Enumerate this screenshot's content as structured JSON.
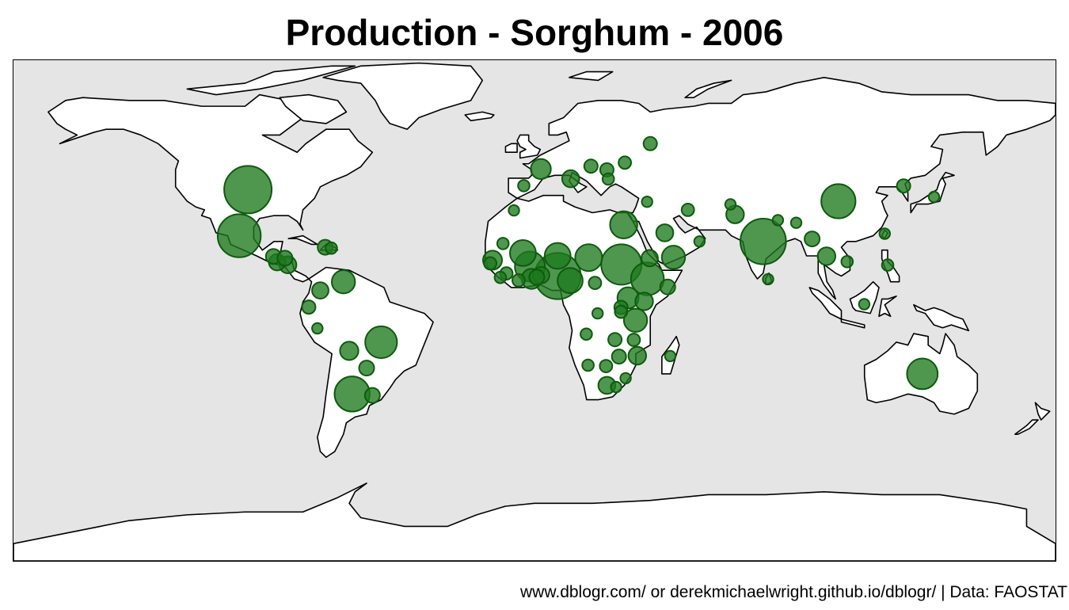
{
  "title": "Production - Sorghum - 2006",
  "caption": "www.dblogr.com/ or derekmichaelwright.github.io/dblogr/ | Data: FAOSTAT",
  "colors": {
    "ocean": "#e5e5e5",
    "land": "#ffffff",
    "bubble": "#1e7a1e"
  },
  "map": {
    "projection": "equirectangular",
    "lon_range": [
      -180,
      180
    ],
    "lat_range": [
      -90,
      84
    ],
    "bubble_metric": "sorghum production (relative)",
    "points": [
      {
        "name": "United States",
        "lon": -99,
        "lat": 39,
        "size": 1.0
      },
      {
        "name": "Mexico",
        "lon": -102,
        "lat": 23,
        "size": 0.82
      },
      {
        "name": "Argentina",
        "lon": -63,
        "lat": -32,
        "size": 0.55
      },
      {
        "name": "Brazil",
        "lon": -53,
        "lat": -14,
        "size": 0.45
      },
      {
        "name": "Nigeria",
        "lon": 8,
        "lat": 9,
        "size": 0.95
      },
      {
        "name": "Sudan",
        "lon": 30,
        "lat": 13,
        "size": 0.72
      },
      {
        "name": "Ethiopia",
        "lon": 39,
        "lat": 8,
        "size": 0.48
      },
      {
        "name": "India",
        "lon": 79,
        "lat": 21,
        "size": 0.92
      },
      {
        "name": "China",
        "lon": 105,
        "lat": 35,
        "size": 0.52
      },
      {
        "name": "Australia",
        "lon": 134,
        "lat": -25,
        "size": 0.42
      },
      {
        "name": "Burkina Faso",
        "lon": -1.6,
        "lat": 12.3,
        "size": 0.4
      },
      {
        "name": "Niger",
        "lon": 8,
        "lat": 16,
        "size": 0.3
      },
      {
        "name": "Mali",
        "lon": -4,
        "lat": 17,
        "size": 0.3
      },
      {
        "name": "Chad",
        "lon": 18.7,
        "lat": 15.4,
        "size": 0.32
      },
      {
        "name": "Cameroon",
        "lon": 12.3,
        "lat": 7.4,
        "size": 0.28
      },
      {
        "name": "Egypt",
        "lon": 30.8,
        "lat": 26.8,
        "size": 0.33
      },
      {
        "name": "Yemen",
        "lon": 48,
        "lat": 15.5,
        "size": 0.24
      },
      {
        "name": "Tanzania",
        "lon": 34.9,
        "lat": -6.4,
        "size": 0.24
      },
      {
        "name": "Uganda",
        "lon": 32.3,
        "lat": 1.4,
        "size": 0.2
      },
      {
        "name": "Venezuela",
        "lon": -66,
        "lat": 7,
        "size": 0.24
      },
      {
        "name": "Bolivia",
        "lon": -64,
        "lat": -17,
        "size": 0.15
      },
      {
        "name": "Colombia",
        "lon": -74,
        "lat": 4,
        "size": 0.12
      },
      {
        "name": "France",
        "lon": 2.2,
        "lat": 46.2,
        "size": 0.18
      },
      {
        "name": "Italy",
        "lon": 12.5,
        "lat": 42.8,
        "size": 0.13
      },
      {
        "name": "Pakistan",
        "lon": 69.3,
        "lat": 30.4,
        "size": 0.14
      },
      {
        "name": "Thailand",
        "lon": 100.9,
        "lat": 15.9,
        "size": 0.14
      },
      {
        "name": "Ghana",
        "lon": -1,
        "lat": 8,
        "size": 0.18
      },
      {
        "name": "Senegal",
        "lon": -14.5,
        "lat": 14.5,
        "size": 0.16
      },
      {
        "name": "Mozambique",
        "lon": 35.5,
        "lat": -18.7,
        "size": 0.14
      },
      {
        "name": "South Africa",
        "lon": 25,
        "lat": -29,
        "size": 0.13
      },
      {
        "name": "Kenya",
        "lon": 37.9,
        "lat": 0.2,
        "size": 0.14
      },
      {
        "name": "Saudi Arabia",
        "lon": 45,
        "lat": 24,
        "size": 0.13
      },
      {
        "name": "Nicaragua",
        "lon": -85.2,
        "lat": 12.9,
        "size": 0.13
      },
      {
        "name": "El Salvador",
        "lon": -88.9,
        "lat": 13.8,
        "size": 0.12
      },
      {
        "name": "Guatemala",
        "lon": -90.2,
        "lat": 15.8,
        "size": 0.1
      },
      {
        "name": "Honduras",
        "lon": -86.2,
        "lat": 15.2,
        "size": 0.1
      },
      {
        "name": "Uruguay",
        "lon": -56,
        "lat": -32.5,
        "size": 0.1
      },
      {
        "name": "Paraguay",
        "lon": -58,
        "lat": -23,
        "size": 0.1
      },
      {
        "name": "Ecuador",
        "lon": -78,
        "lat": -1.8,
        "size": 0.08
      },
      {
        "name": "Haiti",
        "lon": -72.3,
        "lat": 19,
        "size": 0.1
      },
      {
        "name": "Dominican Republic",
        "lon": -70.2,
        "lat": 18.7,
        "size": 0.06
      },
      {
        "name": "Spain",
        "lon": -3.7,
        "lat": 40.4,
        "size": 0.06
      },
      {
        "name": "Hungary",
        "lon": 19.5,
        "lat": 47.2,
        "size": 0.08
      },
      {
        "name": "Romania",
        "lon": 25,
        "lat": 45.9,
        "size": 0.08
      },
      {
        "name": "Ukraine",
        "lon": 31.2,
        "lat": 48.4,
        "size": 0.07
      },
      {
        "name": "Russia",
        "lon": 40,
        "lat": 55,
        "size": 0.08
      },
      {
        "name": "Bulgaria",
        "lon": 25.5,
        "lat": 42.7,
        "size": 0.06
      },
      {
        "name": "Iran",
        "lon": 53,
        "lat": 32,
        "size": 0.07
      },
      {
        "name": "Afghanistan",
        "lon": 67.7,
        "lat": 33.9,
        "size": 0.05
      },
      {
        "name": "Myanmar",
        "lon": 95.9,
        "lat": 21.9,
        "size": 0.1
      },
      {
        "name": "Korea DPR",
        "lon": 127.5,
        "lat": 40.3,
        "size": 0.08
      },
      {
        "name": "Japan",
        "lon": 138,
        "lat": 36.5,
        "size": 0.05
      },
      {
        "name": "Indonesia",
        "lon": 113.9,
        "lat": -0.8,
        "size": 0.05
      },
      {
        "name": "Philippines",
        "lon": 122,
        "lat": 12.8,
        "size": 0.06
      },
      {
        "name": "Vietnam",
        "lon": 108,
        "lat": 14,
        "size": 0.06
      },
      {
        "name": "Sri Lanka",
        "lon": 80.7,
        "lat": 7.9,
        "size": 0.05
      },
      {
        "name": "Eritrea",
        "lon": 39.8,
        "lat": 15.2,
        "size": 0.12
      },
      {
        "name": "Somalia",
        "lon": 46,
        "lat": 5.2,
        "size": 0.1
      },
      {
        "name": "Rwanda",
        "lon": 29.9,
        "lat": -1.9,
        "size": 0.08
      },
      {
        "name": "Burundi",
        "lon": 29.9,
        "lat": -3.4,
        "size": 0.07
      },
      {
        "name": "Zimbabwe",
        "lon": 29.2,
        "lat": -19,
        "size": 0.09
      },
      {
        "name": "Zambia",
        "lon": 27.8,
        "lat": -13.1,
        "size": 0.08
      },
      {
        "name": "Malawi",
        "lon": 34.3,
        "lat": -13.2,
        "size": 0.07
      },
      {
        "name": "Botswana",
        "lon": 24.7,
        "lat": -22.3,
        "size": 0.07
      },
      {
        "name": "Namibia",
        "lon": 18.5,
        "lat": -22,
        "size": 0.06
      },
      {
        "name": "Angola",
        "lon": 17.9,
        "lat": -11.2,
        "size": 0.06
      },
      {
        "name": "Benin",
        "lon": 2.3,
        "lat": 9.3,
        "size": 0.12
      },
      {
        "name": "Togo",
        "lon": 0.8,
        "lat": 8.6,
        "size": 0.1
      },
      {
        "name": "Guinea",
        "lon": -9.7,
        "lat": 9.9,
        "size": 0.07
      },
      {
        "name": "Gambia",
        "lon": -15.3,
        "lat": 13.4,
        "size": 0.07
      },
      {
        "name": "Sierra Leone",
        "lon": -11.8,
        "lat": 8.5,
        "size": 0.06
      },
      {
        "name": "Mauritania",
        "lon": -10.9,
        "lat": 20.3,
        "size": 0.06
      },
      {
        "name": "Cote d'Ivoire",
        "lon": -5.5,
        "lat": 7.5,
        "size": 0.07
      },
      {
        "name": "Central African Republic",
        "lon": 20.9,
        "lat": 6.6,
        "size": 0.07
      },
      {
        "name": "Morocco",
        "lon": -7.1,
        "lat": 31.8,
        "size": 0.05
      },
      {
        "name": "Syria",
        "lon": 38.9,
        "lat": 34.8,
        "size": 0.05
      },
      {
        "name": "Oman",
        "lon": 57,
        "lat": 21,
        "size": 0.05
      },
      {
        "name": "Peru",
        "lon": -75,
        "lat": -9.2,
        "size": 0.05
      },
      {
        "name": "Madagascar",
        "lon": 46.9,
        "lat": -18.8,
        "size": 0.05
      },
      {
        "name": "Swaziland",
        "lon": 31.5,
        "lat": -26.5,
        "size": 0.05
      },
      {
        "name": "Lesotho",
        "lon": 28.2,
        "lat": -29.6,
        "size": 0.05
      },
      {
        "name": "Congo DR",
        "lon": 21.8,
        "lat": -4,
        "size": 0.05
      },
      {
        "name": "Taiwan",
        "lon": 121,
        "lat": 23.7,
        "size": 0.05
      },
      {
        "name": "Bhutan",
        "lon": 90.4,
        "lat": 27.5,
        "size": 0.05
      },
      {
        "name": "Nepal",
        "lon": 84.1,
        "lat": 28.4,
        "size": 0.05
      }
    ]
  }
}
